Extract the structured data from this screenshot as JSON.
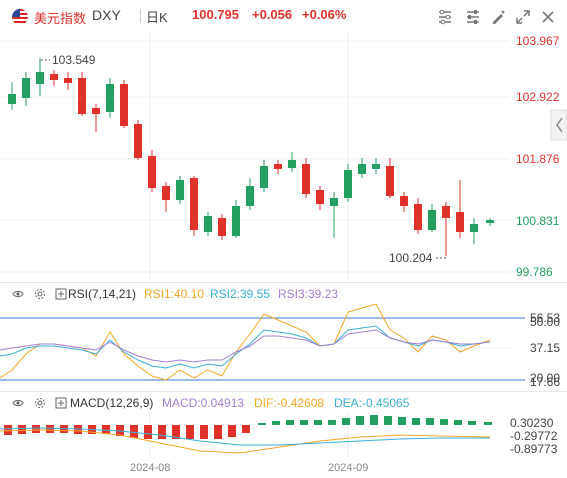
{
  "header": {
    "name": "美元指数",
    "code": "DXY",
    "period": "日K",
    "price": "100.795",
    "change": "+0.056",
    "change_pct": "+0.06%",
    "up_color": "#e0312a",
    "down_color": "#21a060"
  },
  "toolbar": [
    "indicator-settings-icon",
    "chart-settings-icon",
    "draw-tools-icon",
    "fullscreen-icon",
    "close-icon"
  ],
  "main_chart": {
    "type": "candlestick",
    "y_ticks": [
      "103.967",
      "102.922",
      "101.876",
      "100.831",
      "99.786"
    ],
    "high_label": "103.549",
    "low_label": "100.204",
    "x_labels": [
      "2024-08",
      "2024-09"
    ]
  },
  "rsi": {
    "title": "RSI(7,14,21)",
    "rsi1": "RSI1:40.10",
    "rsi2": "RSI2:39.55",
    "rsi3": "RSI3:39.23",
    "y_ticks": [
      "56.53",
      "50.00",
      "37.15",
      "20.00",
      "17.66"
    ],
    "colors": {
      "rsi1": "#f5a623",
      "rsi2": "#3ab0d8",
      "rsi3": "#a57fd6"
    }
  },
  "macd": {
    "title": "MACD(12,26,9)",
    "macd": "MACD:0.04913",
    "dif": "DIF:-0.42608",
    "dea": "DEA:-0.45065",
    "y_ticks": [
      "0.30230",
      "-0.29772",
      "-0.89773"
    ],
    "colors": {
      "macd": "#a57fd6",
      "dif": "#f5a623",
      "dea": "#3ab0d8"
    }
  }
}
